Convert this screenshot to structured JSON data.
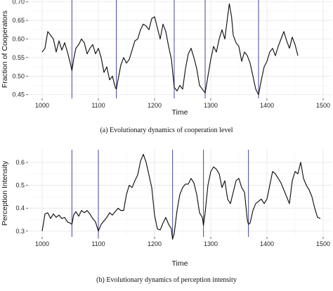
{
  "chart_data": [
    {
      "type": "line",
      "caption": "(a)  Evolutionary dynamics of cooperation level",
      "xlabel": "Time",
      "ylabel": "Fraction of Cooperators",
      "xlim": [
        975,
        1515
      ],
      "ylim": [
        0.44,
        0.705
      ],
      "xticks": [
        1000,
        1100,
        1200,
        1300,
        1400,
        1500
      ],
      "yticks": [
        0.45,
        0.5,
        0.55,
        0.6,
        0.65,
        0.7
      ],
      "ytick_labels": [
        "0.45",
        "0.50",
        "0.55",
        "0.60",
        "0.65",
        "0.70"
      ],
      "grid": true,
      "vertical_markers": [
        1053,
        1132,
        1235,
        1290,
        1385
      ],
      "series": [
        {
          "x": [
            1000,
            1005,
            1010,
            1015,
            1020,
            1025,
            1030,
            1035,
            1040,
            1045,
            1050,
            1053,
            1056,
            1060,
            1065,
            1070,
            1075,
            1080,
            1085,
            1090,
            1095,
            1100,
            1105,
            1110,
            1115,
            1120,
            1125,
            1130,
            1132,
            1135,
            1140,
            1145,
            1150,
            1155,
            1160,
            1165,
            1170,
            1175,
            1180,
            1185,
            1190,
            1195,
            1200,
            1205,
            1210,
            1215,
            1220,
            1225,
            1230,
            1235,
            1240,
            1245,
            1250,
            1255,
            1260,
            1265,
            1270,
            1275,
            1280,
            1285,
            1290,
            1295,
            1300,
            1305,
            1310,
            1315,
            1320,
            1325,
            1330,
            1333,
            1337,
            1340,
            1345,
            1350,
            1355,
            1360,
            1365,
            1370,
            1375,
            1380,
            1385,
            1390,
            1395,
            1400,
            1405,
            1410,
            1415,
            1420,
            1425,
            1430,
            1435,
            1440,
            1445,
            1450,
            1455
          ],
          "values": [
            0.565,
            0.575,
            0.62,
            0.61,
            0.6,
            0.565,
            0.595,
            0.57,
            0.59,
            0.565,
            0.535,
            0.515,
            0.545,
            0.575,
            0.585,
            0.6,
            0.59,
            0.56,
            0.575,
            0.585,
            0.56,
            0.575,
            0.55,
            0.51,
            0.525,
            0.49,
            0.5,
            0.47,
            0.465,
            0.49,
            0.53,
            0.55,
            0.535,
            0.545,
            0.57,
            0.595,
            0.6,
            0.625,
            0.64,
            0.635,
            0.625,
            0.655,
            0.66,
            0.63,
            0.6,
            0.64,
            0.62,
            0.58,
            0.545,
            0.47,
            0.46,
            0.475,
            0.465,
            0.52,
            0.56,
            0.575,
            0.55,
            0.52,
            0.475,
            0.465,
            0.455,
            0.5,
            0.545,
            0.58,
            0.565,
            0.6,
            0.625,
            0.6,
            0.66,
            0.695,
            0.66,
            0.61,
            0.59,
            0.58,
            0.54,
            0.565,
            0.555,
            0.535,
            0.5,
            0.465,
            0.45,
            0.49,
            0.525,
            0.54,
            0.565,
            0.575,
            0.555,
            0.58,
            0.6,
            0.62,
            0.595,
            0.575,
            0.605,
            0.585,
            0.555
          ]
        }
      ]
    },
    {
      "type": "line",
      "caption": "(b)  Evolutionary dynamics of perception intensity",
      "xlabel": "Time",
      "ylabel": "Perception Intensity",
      "xlim": [
        975,
        1515
      ],
      "ylim": [
        0.275,
        0.655
      ],
      "xticks": [
        1000,
        1100,
        1200,
        1300,
        1400,
        1500
      ],
      "yticks": [
        0.3,
        0.4,
        0.5,
        0.6
      ],
      "ytick_labels": [
        "0.3",
        "0.4",
        "0.5",
        "0.6"
      ],
      "grid": true,
      "vertical_markers": [
        1053,
        1100,
        1232,
        1287,
        1367
      ],
      "series": [
        {
          "x": [
            1000,
            1005,
            1010,
            1015,
            1020,
            1025,
            1030,
            1035,
            1040,
            1045,
            1050,
            1053,
            1056,
            1060,
            1065,
            1070,
            1075,
            1080,
            1085,
            1090,
            1095,
            1100,
            1105,
            1110,
            1115,
            1120,
            1125,
            1130,
            1135,
            1140,
            1145,
            1150,
            1155,
            1160,
            1165,
            1170,
            1175,
            1180,
            1185,
            1190,
            1195,
            1200,
            1205,
            1210,
            1215,
            1220,
            1225,
            1230,
            1232,
            1235,
            1240,
            1245,
            1250,
            1255,
            1260,
            1265,
            1270,
            1275,
            1280,
            1285,
            1287,
            1290,
            1295,
            1300,
            1305,
            1310,
            1315,
            1320,
            1325,
            1330,
            1335,
            1340,
            1345,
            1350,
            1355,
            1360,
            1365,
            1367,
            1370,
            1375,
            1380,
            1385,
            1390,
            1395,
            1400,
            1405,
            1410,
            1415,
            1420,
            1425,
            1430,
            1435,
            1440,
            1445,
            1450,
            1455,
            1460,
            1465,
            1470,
            1475,
            1480,
            1485,
            1490,
            1495
          ],
          "values": [
            0.3,
            0.375,
            0.38,
            0.355,
            0.375,
            0.36,
            0.37,
            0.355,
            0.36,
            0.34,
            0.335,
            0.33,
            0.37,
            0.385,
            0.365,
            0.39,
            0.38,
            0.39,
            0.375,
            0.355,
            0.34,
            0.3,
            0.33,
            0.345,
            0.36,
            0.38,
            0.37,
            0.385,
            0.4,
            0.39,
            0.39,
            0.46,
            0.5,
            0.49,
            0.52,
            0.545,
            0.605,
            0.635,
            0.6,
            0.545,
            0.49,
            0.37,
            0.31,
            0.305,
            0.335,
            0.36,
            0.33,
            0.31,
            0.265,
            0.29,
            0.39,
            0.46,
            0.49,
            0.505,
            0.505,
            0.53,
            0.51,
            0.46,
            0.38,
            0.36,
            0.325,
            0.38,
            0.5,
            0.56,
            0.58,
            0.57,
            0.55,
            0.49,
            0.52,
            0.44,
            0.42,
            0.47,
            0.52,
            0.53,
            0.49,
            0.47,
            0.35,
            0.33,
            0.335,
            0.39,
            0.42,
            0.43,
            0.44,
            0.42,
            0.44,
            0.5,
            0.56,
            0.55,
            0.53,
            0.51,
            0.48,
            0.45,
            0.42,
            0.52,
            0.56,
            0.55,
            0.6,
            0.53,
            0.5,
            0.48,
            0.45,
            0.4,
            0.36,
            0.355
          ]
        }
      ]
    }
  ],
  "colors": {
    "series": "#111111",
    "marker": "#5555aa",
    "grid": "#e6e6e6"
  }
}
